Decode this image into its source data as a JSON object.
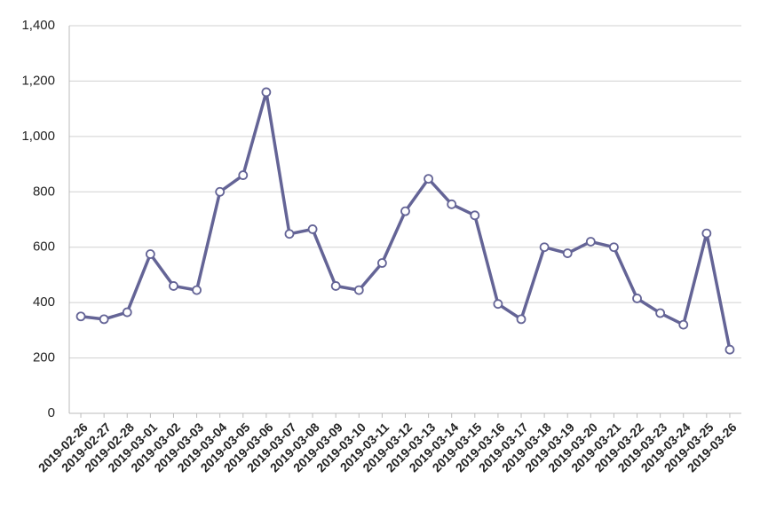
{
  "chart_data": {
    "type": "line",
    "categories": [
      "2019-02-26",
      "2019-02-27",
      "2019-02-28",
      "2019-03-01",
      "2019-03-02",
      "2019-03-03",
      "2019-03-04",
      "2019-03-05",
      "2019-03-06",
      "2019-03-07",
      "2019-03-08",
      "2019-03-09",
      "2019-03-10",
      "2019-03-11",
      "2019-03-12",
      "2019-03-13",
      "2019-03-14",
      "2019-03-15",
      "2019-03-16",
      "2019-03-17",
      "2019-03-18",
      "2019-03-19",
      "2019-03-20",
      "2019-03-21",
      "2019-03-22",
      "2019-03-23",
      "2019-03-24",
      "2019-03-25",
      "2019-03-26"
    ],
    "values": [
      350,
      340,
      365,
      575,
      460,
      445,
      800,
      860,
      1160,
      648,
      665,
      460,
      445,
      543,
      730,
      847,
      755,
      715,
      395,
      340,
      600,
      578,
      620,
      600,
      415,
      362,
      320,
      650,
      230
    ],
    "color": "#646496",
    "ylim": [
      0,
      1400
    ],
    "yticks": [
      0,
      200,
      400,
      600,
      800,
      {
        "value": 1000,
        "label": "1,000"
      },
      {
        "value": 1200,
        "label": "1,200"
      },
      {
        "value": 1400,
        "label": "1,400"
      }
    ],
    "grid": true
  }
}
